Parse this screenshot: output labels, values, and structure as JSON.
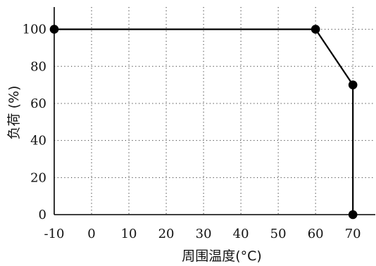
{
  "chart_data": {
    "type": "line",
    "xlabel": "周围温度(°C)",
    "ylabel": "负荷 (%)",
    "xlim": [
      -10,
      76
    ],
    "ylim": [
      0,
      112
    ],
    "x_ticks": [
      -10,
      0,
      10,
      20,
      30,
      40,
      50,
      60,
      70
    ],
    "x_tick_labels": [
      "-10",
      "0",
      "10",
      "20",
      "30",
      "40",
      "50",
      "60",
      "70"
    ],
    "y_ticks": [
      0,
      20,
      40,
      60,
      80,
      100
    ],
    "y_tick_labels": [
      "0",
      "20",
      "40",
      "60",
      "80",
      "100"
    ],
    "grid": true,
    "series": [
      {
        "x": [
          -10,
          60,
          70,
          70
        ],
        "y": [
          100,
          100,
          70,
          0
        ],
        "color": "#000000",
        "marker": "filled-circle"
      }
    ]
  }
}
